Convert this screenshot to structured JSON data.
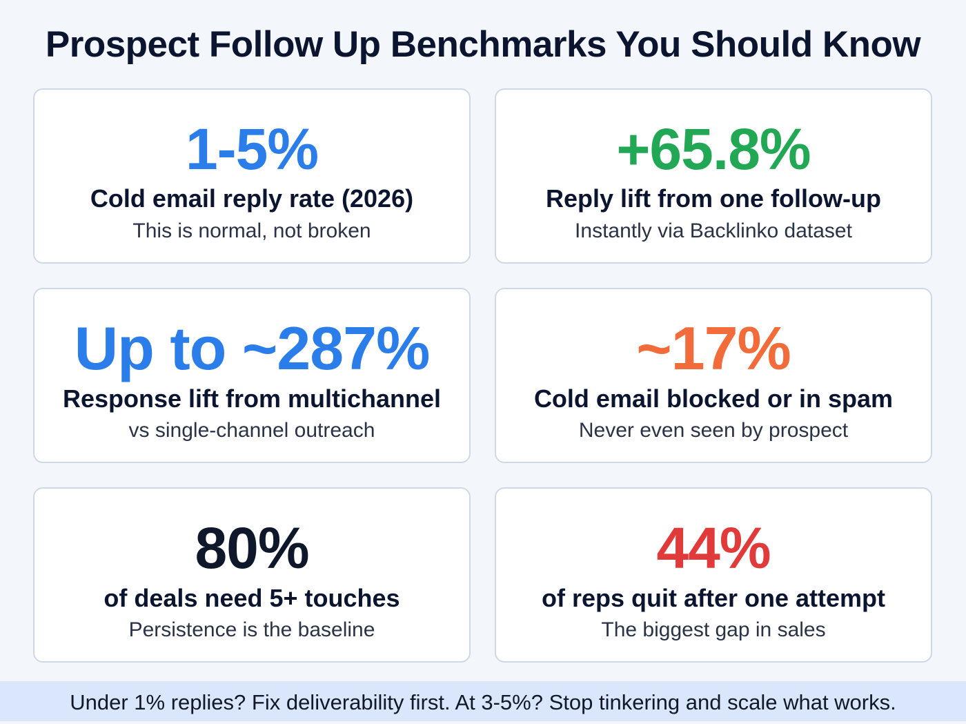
{
  "title": "Prospect Follow Up Benchmarks You Should Know",
  "colors": {
    "blue": "#2b7de9",
    "green": "#22a855",
    "orange": "#f26b3a",
    "navy": "#0f172a",
    "red": "#e03a3a",
    "footer_bg": "#d9e6fb"
  },
  "cards": [
    {
      "value": "1-5%",
      "label": "Cold email reply rate (2026)",
      "sub": "This is normal, not broken",
      "color": "#2b7de9"
    },
    {
      "value": "+65.8%",
      "label": "Reply lift from one follow-up",
      "sub": "Instantly via Backlinko dataset",
      "color": "#22a855"
    },
    {
      "value": "Up to ~287%",
      "label": "Response lift from multichannel",
      "sub": "vs single-channel outreach",
      "color": "#2b7de9"
    },
    {
      "value": "~17%",
      "label": "Cold email blocked or in spam",
      "sub": "Never even seen by prospect",
      "color": "#f26b3a"
    },
    {
      "value": "80%",
      "label": "of deals need 5+ touches",
      "sub": "Persistence is the baseline",
      "color": "#0f172a"
    },
    {
      "value": "44%",
      "label": "of reps quit after one attempt",
      "sub": "The biggest gap in sales",
      "color": "#e03a3a"
    }
  ],
  "footer": "Under 1% replies? Fix deliverability first. At 3-5%? Stop tinkering and scale what works."
}
